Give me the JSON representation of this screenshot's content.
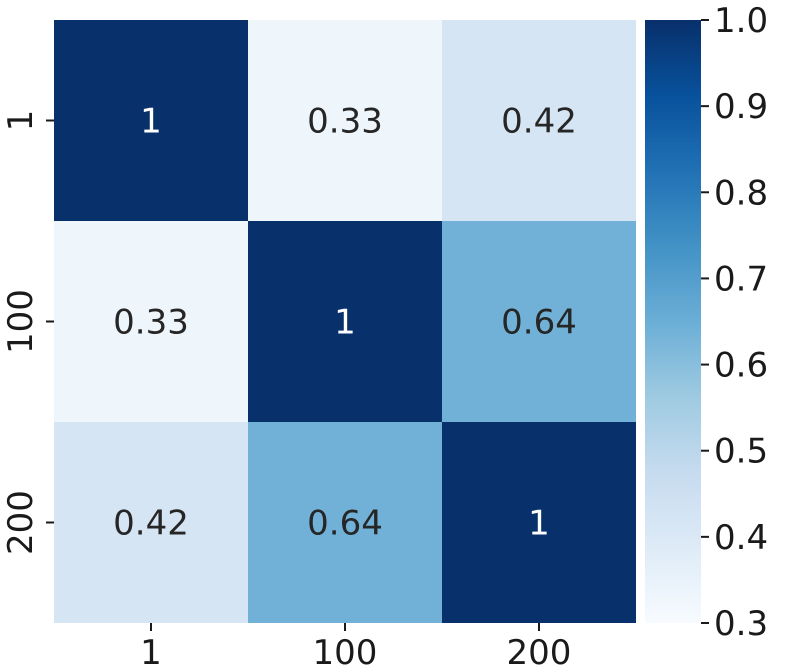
{
  "chart_data": {
    "type": "heatmap",
    "title": "",
    "xlabel": "",
    "ylabel": "",
    "x_categories": [
      "1",
      "100",
      "200"
    ],
    "y_categories": [
      "1",
      "100",
      "200"
    ],
    "values": [
      [
        1,
        0.33,
        0.42
      ],
      [
        0.33,
        1,
        0.64
      ],
      [
        0.42,
        0.64,
        1
      ]
    ],
    "annotations": [
      [
        "1",
        "0.33",
        "0.42"
      ],
      [
        "0.33",
        "1",
        "0.64"
      ],
      [
        "0.42",
        "0.64",
        "1"
      ]
    ],
    "colormap": "Blues",
    "colorbar": {
      "range": [
        0.3,
        1.0
      ],
      "ticks": [
        0.3,
        0.4,
        0.5,
        0.6,
        0.7,
        0.8,
        0.9,
        1.0
      ],
      "tick_labels": [
        "0.3",
        "0.4",
        "0.5",
        "0.6",
        "0.7",
        "0.8",
        "0.9",
        "1.0"
      ]
    }
  }
}
